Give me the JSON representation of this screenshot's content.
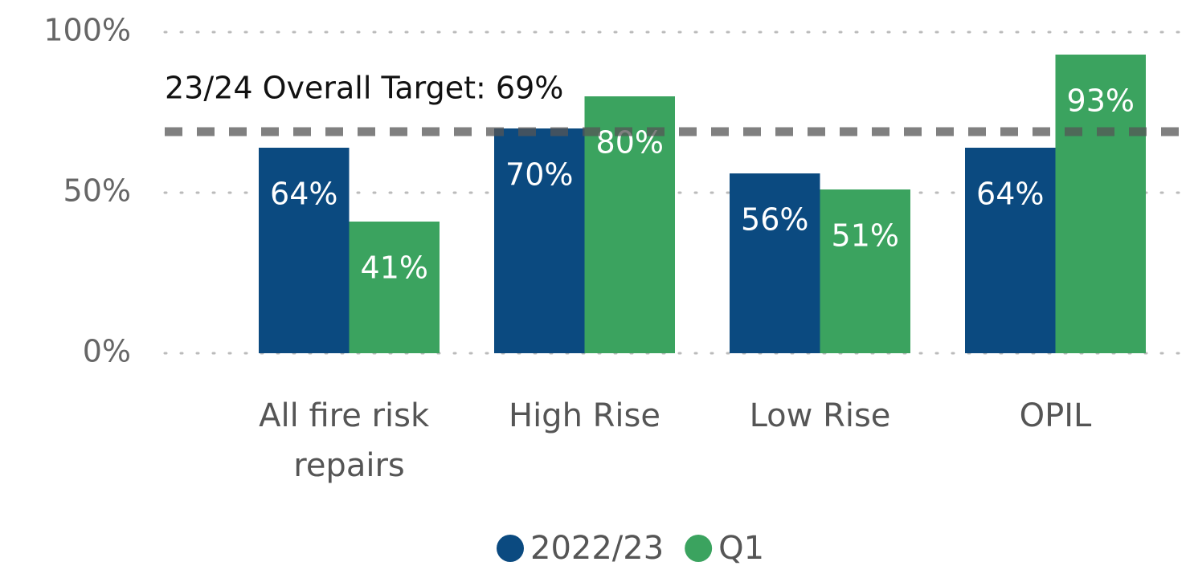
{
  "chart_data": {
    "type": "bar",
    "categories": [
      "All fire risk repairs",
      "High Rise",
      "Low Rise",
      "OPIL"
    ],
    "series": [
      {
        "name": "2022/23",
        "color": "#0b4a80",
        "values": [
          64,
          70,
          56,
          64
        ],
        "value_labels": [
          "64%",
          "70%",
          "56%",
          "64%"
        ]
      },
      {
        "name": "Q1",
        "color": "#3ba35f",
        "values": [
          41,
          80,
          51,
          93
        ],
        "value_labels": [
          "41%",
          "80%",
          "51%",
          "93%"
        ]
      }
    ],
    "ylim": [
      0,
      100
    ],
    "yticks": [
      {
        "value": 0,
        "label": "0%"
      },
      {
        "value": 50,
        "label": "50%"
      },
      {
        "value": 100,
        "label": "100%"
      }
    ],
    "grid": true,
    "target": {
      "value": 69,
      "label": "23/24 Overall Target: 69%"
    },
    "legend": "bottom"
  }
}
